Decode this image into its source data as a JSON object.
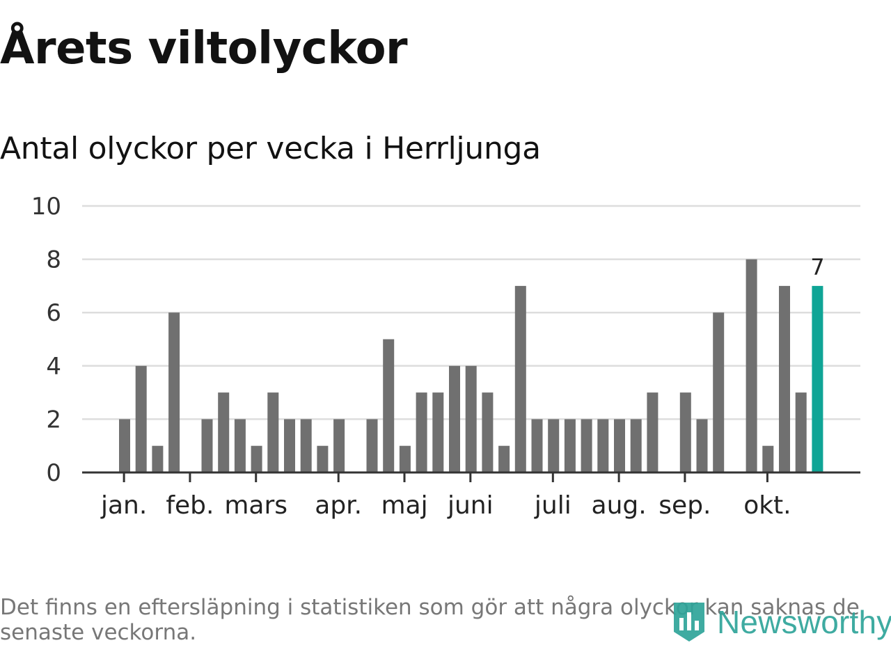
{
  "header": {
    "title": "Årets viltolyckor",
    "subtitle": "Antal olyckor per vecka i Herrljunga"
  },
  "footer": {
    "note": "Det finns en eftersläpning i statistiken som gör att några olyckor kan saknas de senaste veckorna.",
    "brand": "Newsworthy"
  },
  "colors": {
    "bar": "#707070",
    "highlight": "#0fa596",
    "grid": "#dddddd",
    "axis": "#333333",
    "brand": "#2fa49a"
  },
  "chart_data": {
    "type": "bar",
    "title": "Antal olyckor per vecka i Herrljunga",
    "xlabel": "",
    "ylabel": "",
    "x": [
      1,
      2,
      3,
      4,
      5,
      6,
      7,
      8,
      9,
      10,
      11,
      12,
      13,
      14,
      15,
      16,
      17,
      18,
      19,
      20,
      21,
      22,
      23,
      24,
      25,
      26,
      27,
      28,
      29,
      30,
      31,
      32,
      33,
      34,
      35,
      36,
      37,
      38,
      39,
      40,
      41,
      42,
      43
    ],
    "values": [
      2,
      4,
      1,
      6,
      0,
      2,
      3,
      2,
      1,
      3,
      2,
      2,
      1,
      2,
      0,
      2,
      5,
      1,
      3,
      3,
      4,
      4,
      3,
      1,
      7,
      2,
      2,
      2,
      2,
      2,
      2,
      2,
      3,
      0,
      3,
      2,
      6,
      0,
      8,
      1,
      7,
      3,
      7
    ],
    "ylim": [
      0,
      10
    ],
    "yticks": [
      0,
      2,
      4,
      6,
      8,
      10
    ],
    "month_ticks": [
      {
        "label": "jan.",
        "week": 1.3
      },
      {
        "label": "feb.",
        "week": 5.3
      },
      {
        "label": "mars",
        "week": 9.3
      },
      {
        "label": "apr.",
        "week": 14.3
      },
      {
        "label": "maj",
        "week": 18.3
      },
      {
        "label": "juni",
        "week": 22.3
      },
      {
        "label": "juli",
        "week": 27.3
      },
      {
        "label": "aug.",
        "week": 31.3
      },
      {
        "label": "sep.",
        "week": 35.3
      },
      {
        "label": "okt.",
        "week": 40.3
      }
    ],
    "highlight_index": 42,
    "highlight_label": "7",
    "grid": true,
    "legend": "none"
  }
}
